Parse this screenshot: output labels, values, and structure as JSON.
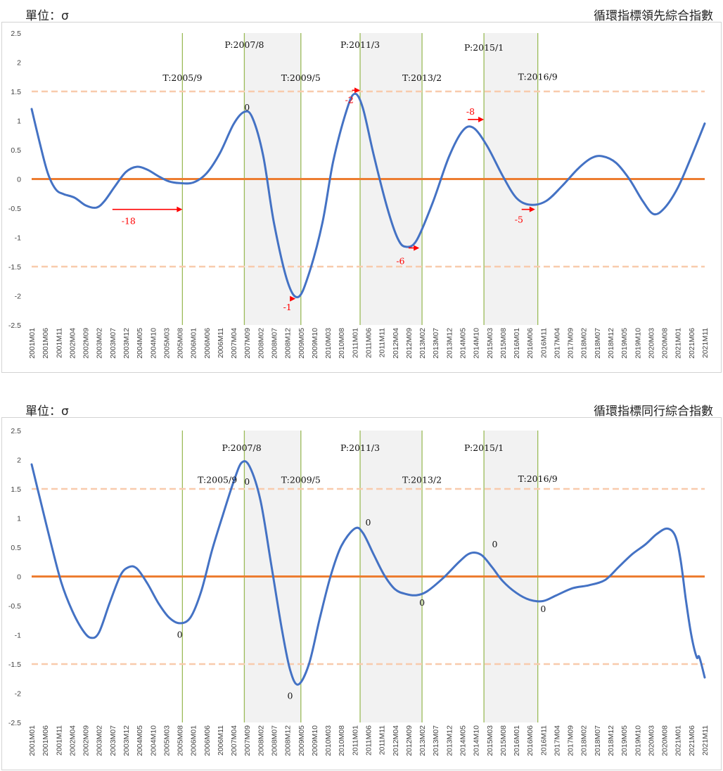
{
  "colors": {
    "series": "#4472c4",
    "zero_line": "#ed7d31",
    "band_line": "#f8cbad",
    "vline": "#9bbb59",
    "shade": "#f2f2f2",
    "arrow": "#ff0000"
  },
  "x_ticks": [
    "2001M01",
    "2001M06",
    "2001M11",
    "2002M04",
    "2002M09",
    "2003M02",
    "2003M07",
    "2003M12",
    "2004M05",
    "2004M10",
    "2005M03",
    "2005M08",
    "2006M01",
    "2006M06",
    "2006M11",
    "2007M04",
    "2007M09",
    "2008M02",
    "2008M07",
    "2008M12",
    "2009M05",
    "2009M10",
    "2010M03",
    "2010M08",
    "2011M01",
    "2011M06",
    "2011M11",
    "2012M04",
    "2012M09",
    "2013M02",
    "2013M07",
    "2013M12",
    "2014M05",
    "2014M10",
    "2015M03",
    "2015M08",
    "2016M01",
    "2016M06",
    "2016M11",
    "2017M04",
    "2017M09",
    "2018M02",
    "2018M07",
    "2018M12",
    "2019M05",
    "2019M10",
    "2020M03",
    "2020M08",
    "2021M01",
    "2021M06",
    "2021M11"
  ],
  "y_ticks": [
    "2.5",
    "2",
    "1.5",
    "1",
    "0.5",
    "0",
    "-0.5",
    "-1",
    "-1.5",
    "-2",
    "-2.5"
  ],
  "chart_data": [
    {
      "type": "line",
      "unit_label": "單位：σ",
      "title": "循環指標領先綜合指數",
      "xlabel": "",
      "ylabel": "",
      "ylim": [
        -2.5,
        2.5
      ],
      "x_start": "2001M01",
      "x_end": "2021M11",
      "reference_lines": [
        0,
        1.5,
        -1.5
      ],
      "shaded_periods": [
        [
          "2007M08",
          "2009M05"
        ],
        [
          "2011M03",
          "2013M02"
        ],
        [
          "2015M01",
          "2016M09"
        ]
      ],
      "turning_point_labels": [
        {
          "text": "T:2005/9",
          "date": "2005M09",
          "y": 1.68
        },
        {
          "text": "P:2007/8",
          "date": "2007M08",
          "y": 2.25
        },
        {
          "text": "T:2009/5",
          "date": "2009M05",
          "y": 1.68
        },
        {
          "text": "P:2011/3",
          "date": "2011M03",
          "y": 2.25
        },
        {
          "text": "T:2013/2",
          "date": "2013M02",
          "y": 1.68
        },
        {
          "text": "P:2015/1",
          "date": "2015M01",
          "y": 2.2
        },
        {
          "text": "T:2016/9",
          "date": "2016M09",
          "y": 1.7
        }
      ],
      "lead_annotations": [
        {
          "text": "-18",
          "date": "2004M01",
          "y": -0.72,
          "arrow_from": "2003M07",
          "arrow_to": "2005M09",
          "arrow_y": -0.52
        },
        {
          "text": "0",
          "date": "2007M09",
          "y": 1.22
        },
        {
          "text": "-1",
          "date": "2008M12",
          "y": -2.2,
          "arrow_from": "2009M01",
          "arrow_to": "2009M03",
          "arrow_y": -2.05
        },
        {
          "text": "-2",
          "date": "2010M11",
          "y": 1.35,
          "arrow_from": "2010M12",
          "arrow_to": "2011M03",
          "arrow_y": 1.52
        },
        {
          "text": "-6",
          "date": "2012M06",
          "y": -1.41,
          "arrow_from": "2012M09",
          "arrow_to": "2013M01",
          "arrow_y": -1.18
        },
        {
          "text": "-8",
          "date": "2014M08",
          "y": 1.15,
          "arrow_from": "2014M07",
          "arrow_to": "2015M01",
          "arrow_y": 1.02
        },
        {
          "text": "-5",
          "date": "2016M02",
          "y": -0.7,
          "arrow_from": "2016M03",
          "arrow_to": "2016M08",
          "arrow_y": -0.52
        }
      ],
      "series": [
        {
          "points": [
            [
              "2001M01",
              1.2
            ],
            [
              "2001M04",
              0.62
            ],
            [
              "2001M07",
              0.1
            ],
            [
              "2001M10",
              -0.18
            ],
            [
              "2002M01",
              -0.26
            ],
            [
              "2002M05",
              -0.32
            ],
            [
              "2002M09",
              -0.45
            ],
            [
              "2003M01",
              -0.49
            ],
            [
              "2003M04",
              -0.38
            ],
            [
              "2003M08",
              -0.12
            ],
            [
              "2003M12",
              0.12
            ],
            [
              "2004M04",
              0.21
            ],
            [
              "2004M08",
              0.16
            ],
            [
              "2004M12",
              0.05
            ],
            [
              "2005M04",
              -0.04
            ],
            [
              "2005M08",
              -0.07
            ],
            [
              "2006M01",
              -0.06
            ],
            [
              "2006M06",
              0.1
            ],
            [
              "2006M11",
              0.45
            ],
            [
              "2007M04",
              0.94
            ],
            [
              "2007M08",
              1.15
            ],
            [
              "2007M11",
              1.05
            ],
            [
              "2008M03",
              0.4
            ],
            [
              "2008M07",
              -0.75
            ],
            [
              "2008M12",
              -1.75
            ],
            [
              "2009M04",
              -2.02
            ],
            [
              "2009M08",
              -1.62
            ],
            [
              "2010M01",
              -0.75
            ],
            [
              "2010M05",
              0.3
            ],
            [
              "2010M10",
              1.18
            ],
            [
              "2011M01",
              1.46
            ],
            [
              "2011M04",
              1.22
            ],
            [
              "2011M08",
              0.42
            ],
            [
              "2012M01",
              -0.48
            ],
            [
              "2012M05",
              -1.02
            ],
            [
              "2012M08",
              -1.16
            ],
            [
              "2012M12",
              -1.05
            ],
            [
              "2013M06",
              -0.4
            ],
            [
              "2013M12",
              0.38
            ],
            [
              "2014M05",
              0.82
            ],
            [
              "2014M09",
              0.88
            ],
            [
              "2015M02",
              0.58
            ],
            [
              "2015M08",
              0.05
            ],
            [
              "2016M01",
              -0.32
            ],
            [
              "2016M06",
              -0.44
            ],
            [
              "2016M12",
              -0.38
            ],
            [
              "2017M06",
              -0.12
            ],
            [
              "2017M12",
              0.18
            ],
            [
              "2018M05",
              0.36
            ],
            [
              "2018M09",
              0.39
            ],
            [
              "2019M02",
              0.28
            ],
            [
              "2019M07",
              0.0
            ],
            [
              "2019M12",
              -0.38
            ],
            [
              "2020M04",
              -0.6
            ],
            [
              "2020M08",
              -0.5
            ],
            [
              "2021M01",
              -0.15
            ],
            [
              "2021M06",
              0.38
            ],
            [
              "2021M11",
              0.95
            ]
          ]
        }
      ]
    },
    {
      "type": "line",
      "unit_label": "單位：σ",
      "title": "循環指標同行綜合指數",
      "xlabel": "",
      "ylabel": "",
      "ylim": [
        -2.5,
        2.5
      ],
      "x_start": "2001M01",
      "x_end": "2021M11",
      "reference_lines": [
        0,
        1.5,
        -1.5
      ],
      "shaded_periods": [
        [
          "2007M08",
          "2009M05"
        ],
        [
          "2011M03",
          "2013M02"
        ],
        [
          "2015M01",
          "2016M09"
        ]
      ],
      "turning_point_labels": [
        {
          "text": "P:2007/8",
          "date": "2007M07",
          "y": 2.15
        },
        {
          "text": "T:2005/9",
          "date": "2006M10",
          "y": 1.6
        },
        {
          "text": "P:2011/3",
          "date": "2011M03",
          "y": 2.15
        },
        {
          "text": "T:2009/5",
          "date": "2009M05",
          "y": 1.6
        },
        {
          "text": "P:2015/1",
          "date": "2015M01",
          "y": 2.15
        },
        {
          "text": "T:2013/2",
          "date": "2013M02",
          "y": 1.6
        },
        {
          "text": "T:2016/9",
          "date": "2016M09",
          "y": 1.62
        }
      ],
      "lead_annotations": [
        {
          "text": "0",
          "date": "2007M09",
          "y": 1.62
        },
        {
          "text": "0",
          "date": "2005M08",
          "y": -1.0
        },
        {
          "text": "0",
          "date": "2009M01",
          "y": -2.05
        },
        {
          "text": "0",
          "date": "2011M06",
          "y": 0.92
        },
        {
          "text": "0",
          "date": "2013M02",
          "y": -0.45
        },
        {
          "text": "0",
          "date": "2015M05",
          "y": 0.55
        },
        {
          "text": "0",
          "date": "2016M11",
          "y": -0.56
        }
      ],
      "series": [
        {
          "points": [
            [
              "2001M01",
              1.92
            ],
            [
              "2001M04",
              1.35
            ],
            [
              "2001M08",
              0.6
            ],
            [
              "2001M12",
              -0.1
            ],
            [
              "2002M04",
              -0.58
            ],
            [
              "2002M08",
              -0.92
            ],
            [
              "2002M11",
              -1.05
            ],
            [
              "2003M02",
              -0.96
            ],
            [
              "2003M06",
              -0.45
            ],
            [
              "2003M10",
              0.02
            ],
            [
              "2004M01",
              0.16
            ],
            [
              "2004M04",
              0.14
            ],
            [
              "2004M08",
              -0.12
            ],
            [
              "2004M12",
              -0.45
            ],
            [
              "2005M04",
              -0.7
            ],
            [
              "2005M08",
              -0.8
            ],
            [
              "2005M12",
              -0.7
            ],
            [
              "2006M04",
              -0.25
            ],
            [
              "2006M08",
              0.45
            ],
            [
              "2006M12",
              1.05
            ],
            [
              "2007M04",
              1.62
            ],
            [
              "2007M07",
              1.95
            ],
            [
              "2007M10",
              1.88
            ],
            [
              "2008M02",
              1.3
            ],
            [
              "2008M06",
              0.2
            ],
            [
              "2008M10",
              -0.92
            ],
            [
              "2009M01",
              -1.6
            ],
            [
              "2009M04",
              -1.85
            ],
            [
              "2009M08",
              -1.5
            ],
            [
              "2009M12",
              -0.72
            ],
            [
              "2010M04",
              0.0
            ],
            [
              "2010M08",
              0.52
            ],
            [
              "2011M01",
              0.82
            ],
            [
              "2011M04",
              0.75
            ],
            [
              "2011M08",
              0.38
            ],
            [
              "2011M12",
              0.02
            ],
            [
              "2012M04",
              -0.22
            ],
            [
              "2012M08",
              -0.3
            ],
            [
              "2012M12",
              -0.32
            ],
            [
              "2013M04",
              -0.25
            ],
            [
              "2013M10",
              -0.02
            ],
            [
              "2014M04",
              0.26
            ],
            [
              "2014M08",
              0.4
            ],
            [
              "2014M12",
              0.37
            ],
            [
              "2015M04",
              0.16
            ],
            [
              "2015M08",
              -0.08
            ],
            [
              "2016M01",
              -0.28
            ],
            [
              "2016M06",
              -0.4
            ],
            [
              "2016M11",
              -0.42
            ],
            [
              "2017M04",
              -0.32
            ],
            [
              "2017M10",
              -0.2
            ],
            [
              "2018M04",
              -0.15
            ],
            [
              "2018M10",
              -0.06
            ],
            [
              "2019M03",
              0.16
            ],
            [
              "2019M08",
              0.38
            ],
            [
              "2020M01",
              0.55
            ],
            [
              "2020M05",
              0.72
            ],
            [
              "2020M09",
              0.82
            ],
            [
              "2020M12",
              0.7
            ],
            [
              "2021M02",
              0.3
            ],
            [
              "2021M04",
              -0.4
            ],
            [
              "2021M06",
              -1.0
            ],
            [
              "2021M08",
              -1.38
            ],
            [
              "2021M09",
              -1.38
            ],
            [
              "2021M11",
              -1.73
            ]
          ]
        }
      ]
    }
  ]
}
